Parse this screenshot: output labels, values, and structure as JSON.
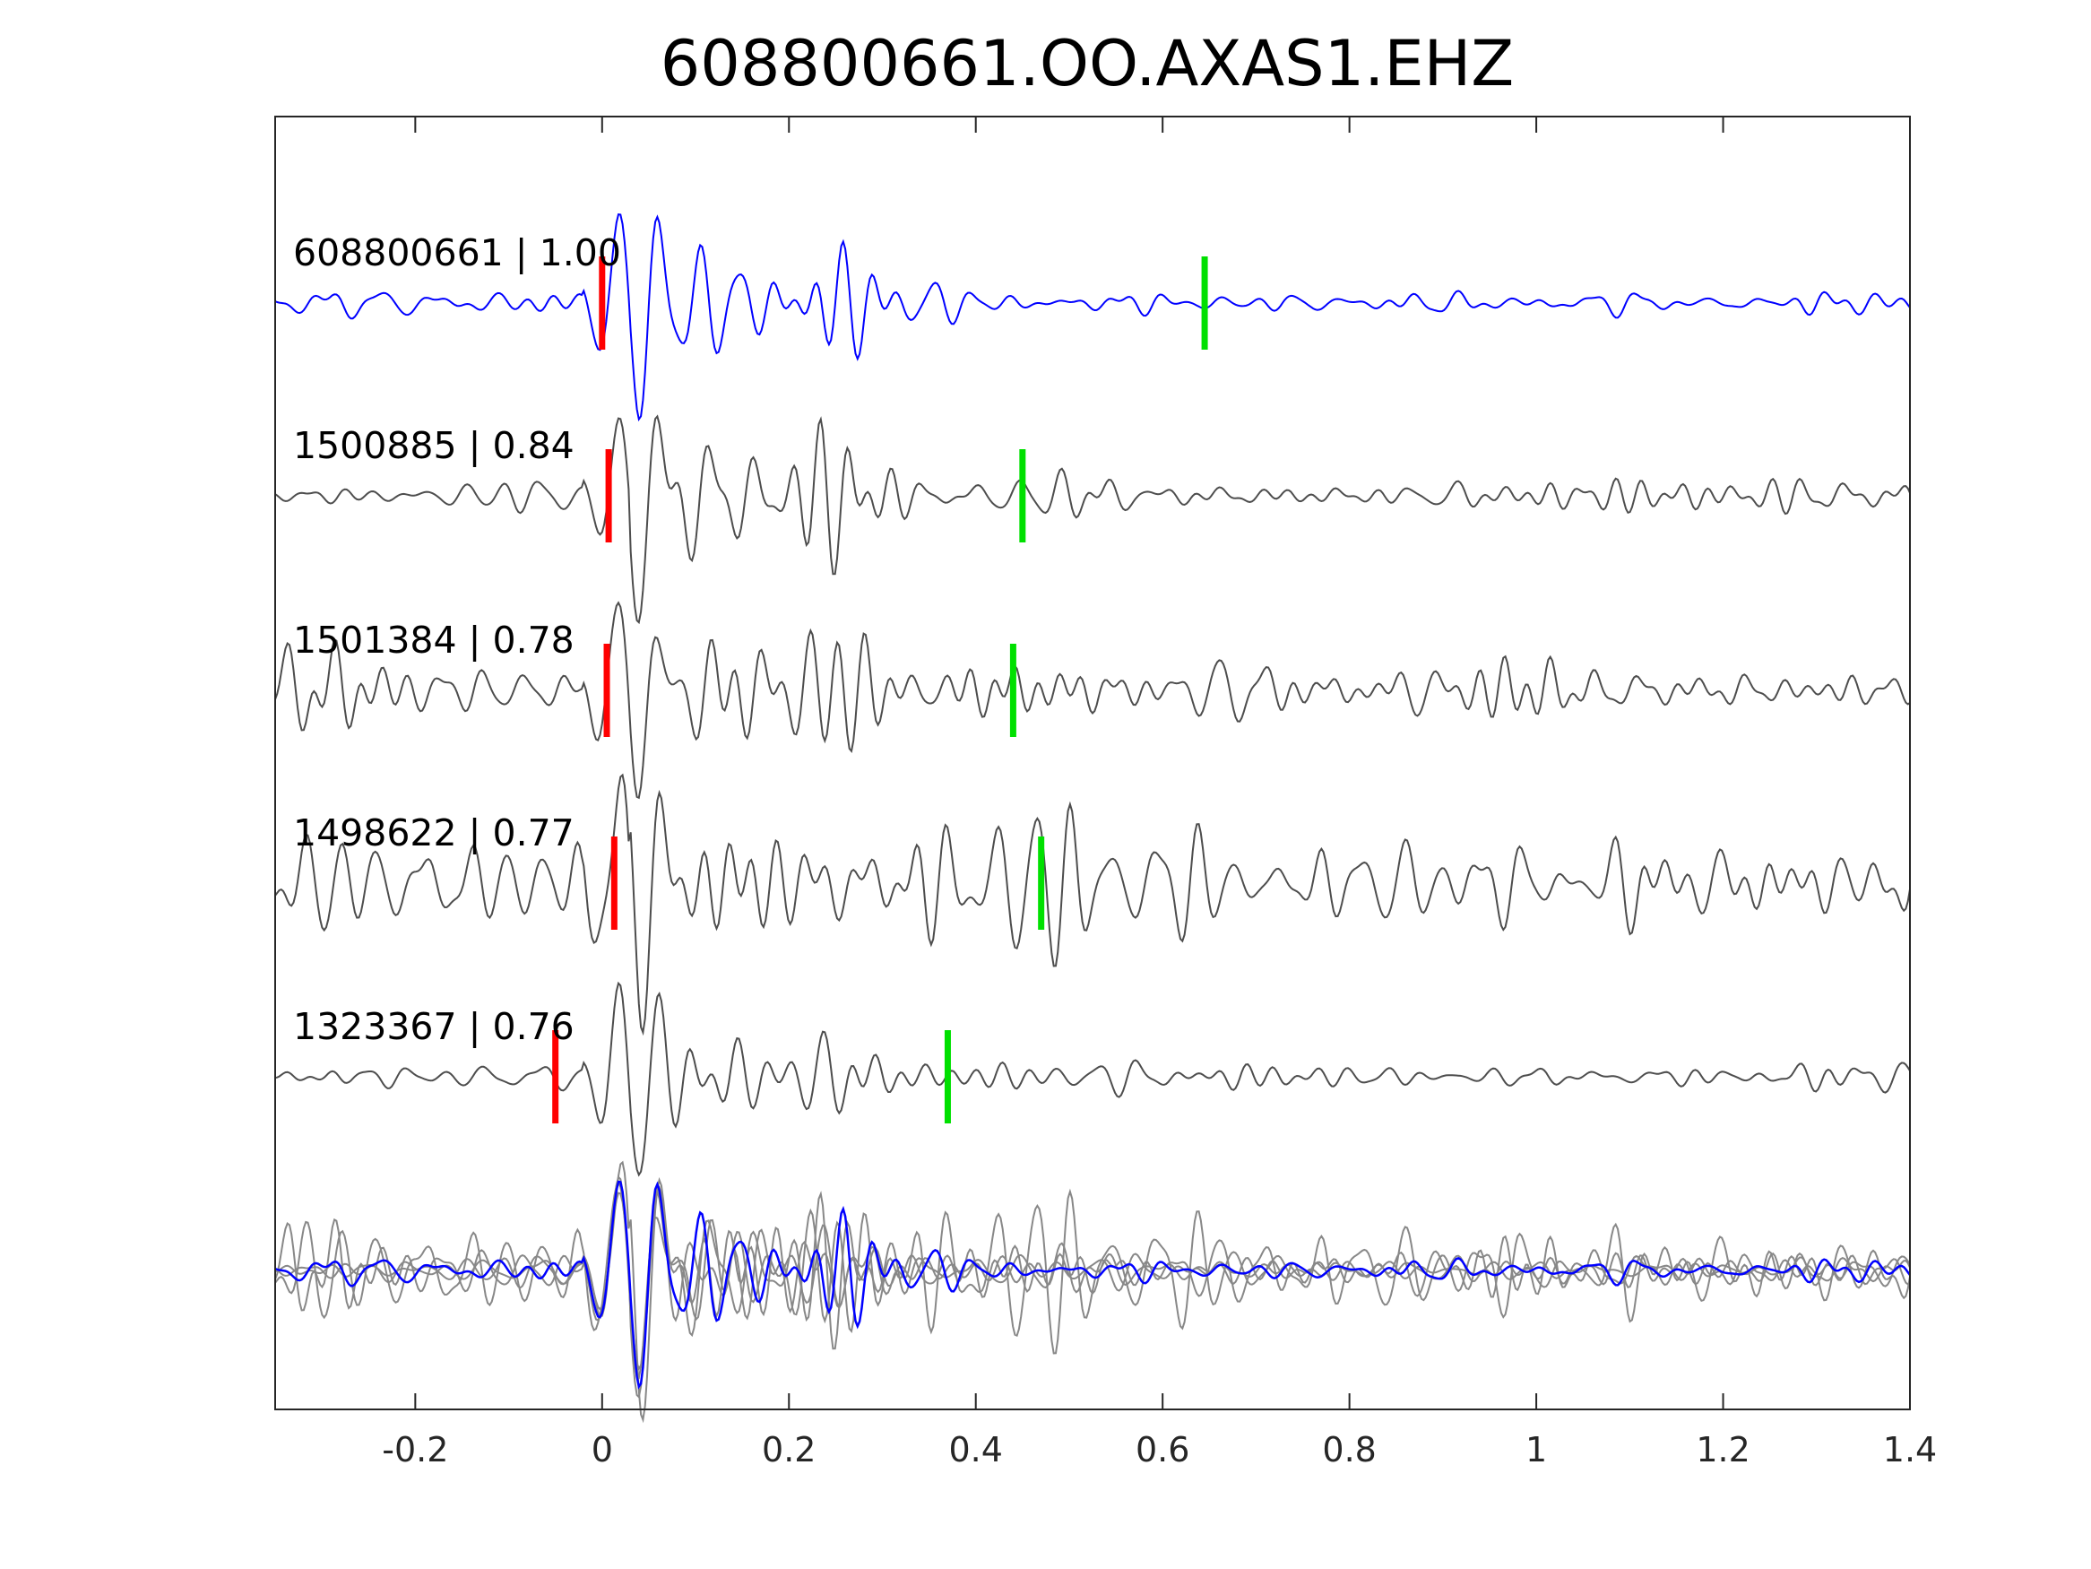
{
  "chart_data": {
    "type": "line",
    "title": "608800661.OO.AXAS1.EHZ",
    "xlabel": "",
    "ylabel": "",
    "xlim": [
      -0.35,
      1.4
    ],
    "xticks": [
      -0.2,
      0,
      0.2,
      0.4,
      0.6,
      0.8,
      1,
      1.2,
      1.4
    ],
    "xtick_labels": [
      "-0.2",
      "0",
      "0.2",
      "0.4",
      "0.6",
      "0.8",
      "1",
      "1.2",
      "1.4"
    ],
    "grid": false,
    "legend": "none",
    "colors": {
      "reference": "#0000ff",
      "trace": "#4d4d4d",
      "overlay": "#888888",
      "p_pick": "#ff0000",
      "s_pick": "#00e000"
    },
    "traces": [
      {
        "id": "608800661",
        "cc": "1.00",
        "label": "608800661 | 1.00",
        "reference": true,
        "p_pick": 0.0,
        "s_pick": 0.645,
        "noise": 0.25,
        "seed": 11
      },
      {
        "id": "1500885",
        "cc": "0.84",
        "label": "1500885 | 0.84",
        "reference": false,
        "p_pick": 0.007,
        "s_pick": 0.45,
        "noise": 0.35,
        "seed": 23
      },
      {
        "id": "1501384",
        "cc": "0.78",
        "label": "1501384 | 0.78",
        "reference": false,
        "p_pick": 0.005,
        "s_pick": 0.44,
        "noise": 0.75,
        "seed": 37
      },
      {
        "id": "1498622",
        "cc": "0.77",
        "label": "1498622 | 0.77",
        "reference": false,
        "p_pick": 0.013,
        "s_pick": 0.47,
        "noise": 1.1,
        "seed": 51
      },
      {
        "id": "1323367",
        "cc": "0.76",
        "label": "1323367 | 0.76",
        "reference": false,
        "p_pick": -0.05,
        "s_pick": 0.37,
        "noise": 0.3,
        "seed": 67
      }
    ],
    "stack": {
      "description_only": false
    }
  }
}
